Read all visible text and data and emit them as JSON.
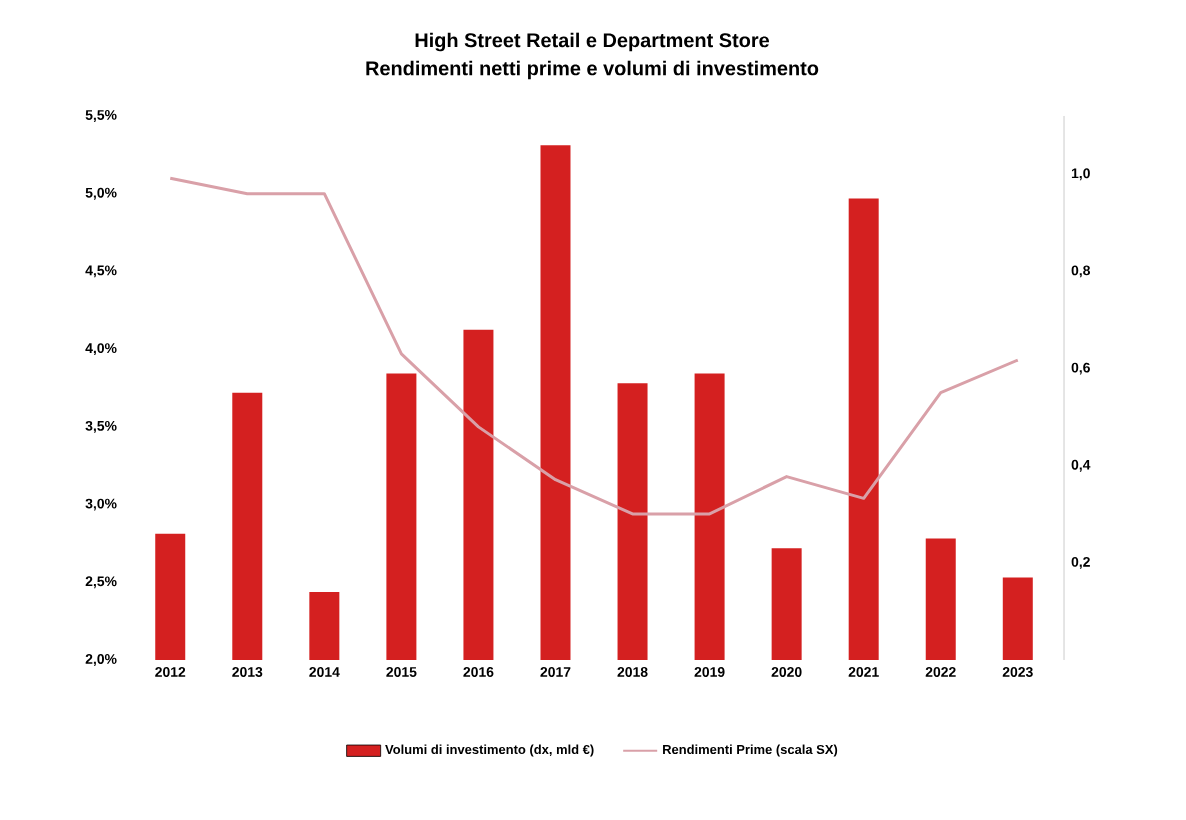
{
  "chart_data": {
    "type": "bar",
    "title": "High Street Retail e Department Store",
    "subtitle": "Rendimenti netti prime e volumi di investimento",
    "categories": [
      "2012",
      "2013",
      "2014",
      "2015",
      "2016",
      "2017",
      "2018",
      "2019",
      "2020",
      "2021",
      "2022",
      "2023"
    ],
    "series": [
      {
        "name": "Volumi di investimento (dx, mld €)",
        "axis": "y2",
        "color": "#d42020",
        "values": [
          0.26,
          0.55,
          0.14,
          0.59,
          0.68,
          1.06,
          0.57,
          0.59,
          0.23,
          0.95,
          0.25,
          0.17
        ]
      },
      {
        "name": "Rendimenti Prime (scala SX)",
        "type": "line",
        "color": "#d9a0a8",
        "values": [
          5.1,
          5.0,
          5.0,
          3.97,
          3.5,
          3.16,
          2.94,
          2.94,
          3.18,
          3.04,
          3.72,
          3.93
        ]
      }
    ],
    "ylim": [
      2.0,
      5.5
    ],
    "yticks": [
      {
        "value": 2.0,
        "label": "2,0%"
      },
      {
        "value": 2.5,
        "label": "2,5%"
      },
      {
        "value": 3.0,
        "label": "3,0%"
      },
      {
        "value": 3.5,
        "label": "3,5%"
      },
      {
        "value": 4.0,
        "label": "4,0%"
      },
      {
        "value": 4.5,
        "label": "4,5%"
      },
      {
        "value": 5.0,
        "label": "5,0%"
      },
      {
        "value": 5.5,
        "label": "5,5%"
      }
    ],
    "y2lim": [
      0,
      1.12
    ],
    "y2ticks": [
      {
        "value": 0.2,
        "label": "0,2"
      },
      {
        "value": 0.4,
        "label": "0,4"
      },
      {
        "value": 0.6,
        "label": "0,6"
      },
      {
        "value": 0.8,
        "label": "0,8"
      },
      {
        "value": 1.0,
        "label": "1,0"
      }
    ],
    "legend": "bottom",
    "grid": false,
    "marker": "none",
    "line_style": "solid"
  }
}
